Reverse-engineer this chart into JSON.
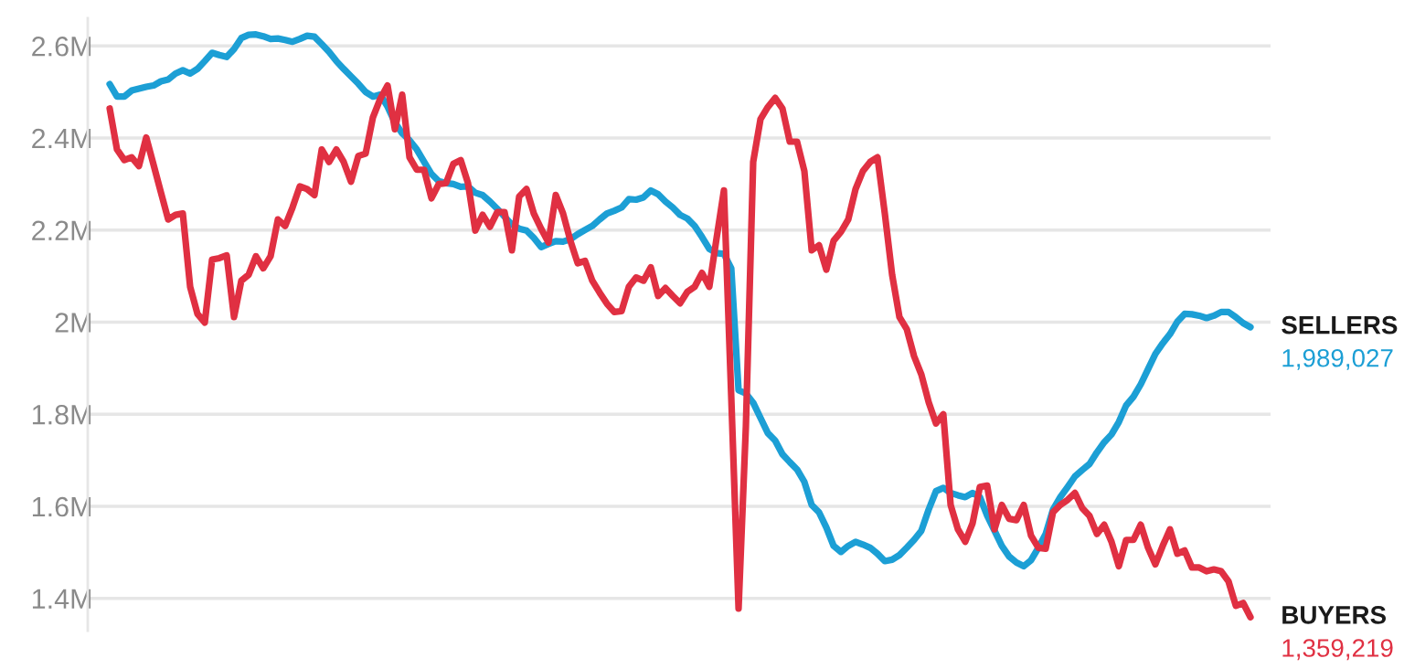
{
  "chart_data": {
    "type": "line",
    "categories": [
      null,
      null,
      null,
      null,
      null,
      null,
      null,
      null,
      null,
      null,
      null,
      null,
      null,
      null,
      null,
      null,
      null,
      null,
      null,
      null,
      null,
      null,
      null,
      null,
      null,
      null,
      null,
      null,
      null,
      null,
      null,
      null,
      null,
      null,
      null,
      null,
      null,
      null,
      null,
      null,
      null,
      null,
      null,
      null,
      null,
      null,
      null,
      null,
      null,
      null,
      null,
      null,
      null,
      null,
      null,
      null,
      null,
      null,
      null,
      null,
      null,
      null,
      null,
      null,
      null,
      null,
      null,
      null,
      null,
      null,
      null,
      null,
      null,
      null,
      null,
      null,
      null,
      null,
      null,
      null,
      null,
      null,
      null,
      null,
      null,
      null,
      null,
      null,
      null,
      null,
      null,
      null,
      null,
      null,
      null,
      null,
      null,
      null,
      null,
      null,
      null,
      null,
      null,
      null,
      null,
      null,
      null,
      null,
      null,
      null,
      null,
      null,
      null,
      null,
      null,
      null,
      null,
      null,
      null,
      null,
      null,
      null,
      null,
      null,
      null,
      null,
      null,
      null,
      null,
      null,
      null,
      null,
      null,
      null,
      null,
      null,
      null,
      null,
      null,
      null,
      null,
      null,
      null,
      null,
      null,
      null,
      null,
      null,
      null,
      null,
      null,
      null,
      null,
      null,
      null,
      null,
      null
    ],
    "series": [
      {
        "name": "SELLERS",
        "color": "#1c9fd5",
        "values": [
          2517000,
          2490000,
          2490000,
          2503000,
          2507000,
          2511000,
          2514000,
          2523000,
          2527000,
          2540000,
          2547000,
          2540000,
          2550000,
          2567000,
          2585000,
          2580000,
          2576000,
          2593000,
          2617000,
          2624000,
          2625000,
          2621000,
          2615000,
          2616000,
          2613000,
          2609000,
          2615000,
          2622000,
          2620000,
          2604000,
          2587000,
          2567000,
          2550000,
          2534000,
          2518000,
          2500000,
          2490000,
          2494000,
          2468000,
          2434000,
          2410000,
          2395000,
          2375000,
          2348000,
          2322000,
          2306000,
          2302000,
          2300000,
          2294000,
          2295000,
          2281000,
          2276000,
          2262000,
          2246000,
          2229000,
          2212000,
          2203000,
          2199000,
          2183000,
          2163000,
          2170000,
          2176000,
          2175000,
          2180000,
          2191000,
          2200000,
          2209000,
          2223000,
          2236000,
          2242000,
          2249000,
          2267000,
          2266000,
          2271000,
          2286000,
          2278000,
          2262000,
          2249000,
          2233000,
          2225000,
          2209000,
          2185000,
          2159000,
          2150000,
          2148000,
          2117000,
          1852000,
          1845000,
          1825000,
          1792000,
          1759000,
          1743000,
          1713000,
          1696000,
          1680000,
          1653000,
          1603000,
          1587000,
          1554000,
          1514000,
          1501000,
          1514000,
          1523000,
          1517000,
          1510000,
          1497000,
          1481000,
          1484000,
          1494000,
          1510000,
          1527000,
          1547000,
          1593000,
          1633000,
          1640000,
          1629000,
          1624000,
          1620000,
          1629000,
          1620000,
          1580000,
          1547000,
          1514000,
          1491000,
          1478000,
          1470000,
          1483000,
          1510000,
          1540000,
          1593000,
          1620000,
          1642000,
          1665000,
          1679000,
          1692000,
          1717000,
          1739000,
          1756000,
          1783000,
          1819000,
          1838000,
          1865000,
          1898000,
          1931000,
          1954000,
          1974000,
          2001000,
          2018000,
          2017000,
          2014000,
          2009000,
          2014000,
          2022000,
          2022000,
          2011000,
          1998000,
          1989027
        ],
        "value_labels": [
          null,
          null,
          null,
          null,
          null,
          null,
          null,
          null,
          null,
          null,
          null,
          null,
          null,
          null,
          null,
          null,
          null,
          null,
          null,
          null,
          null,
          null,
          null,
          null,
          null,
          null,
          null,
          null,
          null,
          null,
          null,
          null,
          null,
          null,
          null,
          null,
          null,
          null,
          null,
          null,
          null,
          null,
          null,
          null,
          null,
          null,
          null,
          null,
          null,
          null,
          null,
          null,
          null,
          null,
          null,
          null,
          null,
          null,
          null,
          null,
          null,
          null,
          null,
          null,
          null,
          null,
          null,
          null,
          null,
          null,
          null,
          null,
          null,
          null,
          null,
          null,
          null,
          null,
          null,
          null,
          null,
          null,
          null,
          null,
          null,
          null,
          null,
          null,
          null,
          null,
          null,
          null,
          null,
          null,
          null,
          null,
          null,
          null,
          null,
          null,
          null,
          null,
          null,
          null,
          null,
          null,
          null,
          null,
          null,
          null,
          null,
          null,
          null,
          null,
          null,
          null,
          null,
          null,
          null,
          null,
          null,
          null,
          null,
          null,
          null,
          null,
          null,
          null,
          null,
          null,
          null,
          null,
          null,
          null,
          null,
          null,
          null,
          null,
          null,
          null,
          null,
          null,
          null,
          null,
          null,
          null,
          null,
          null,
          null,
          null,
          null,
          null,
          null,
          null,
          null,
          null,
          "1,989,027"
        ]
      },
      {
        "name": "BUYERS",
        "color": "#e03042",
        "values": [
          2464000,
          2375000,
          2352000,
          2358000,
          2339000,
          2401000,
          2342000,
          2282000,
          2223000,
          2233000,
          2236000,
          2077000,
          2018000,
          1999000,
          2136000,
          2139000,
          2145000,
          2011000,
          2090000,
          2103000,
          2143000,
          2117000,
          2143000,
          2223000,
          2209000,
          2249000,
          2295000,
          2289000,
          2276000,
          2375000,
          2348000,
          2375000,
          2348000,
          2305000,
          2361000,
          2366000,
          2445000,
          2485000,
          2514000,
          2419000,
          2494000,
          2358000,
          2331000,
          2331000,
          2269000,
          2300000,
          2302000,
          2344000,
          2352000,
          2302000,
          2199000,
          2233000,
          2207000,
          2239000,
          2239000,
          2156000,
          2273000,
          2289000,
          2236000,
          2203000,
          2173000,
          2276000,
          2236000,
          2177000,
          2128000,
          2133000,
          2090000,
          2064000,
          2040000,
          2022000,
          2024000,
          2077000,
          2097000,
          2090000,
          2119000,
          2057000,
          2074000,
          2057000,
          2041000,
          2066000,
          2077000,
          2107000,
          2077000,
          2183000,
          2286000,
          1838000,
          1378000,
          1773000,
          2348000,
          2441000,
          2467000,
          2487000,
          2464000,
          2392000,
          2392000,
          2328000,
          2156000,
          2167000,
          2114000,
          2177000,
          2196000,
          2223000,
          2289000,
          2328000,
          2348000,
          2358000,
          2236000,
          2103000,
          2011000,
          1985000,
          1926000,
          1886000,
          1826000,
          1780000,
          1800000,
          1603000,
          1550000,
          1523000,
          1563000,
          1642000,
          1645000,
          1550000,
          1603000,
          1573000,
          1570000,
          1603000,
          1536000,
          1510000,
          1508000,
          1587000,
          1603000,
          1614000,
          1629000,
          1596000,
          1579000,
          1540000,
          1560000,
          1523000,
          1470000,
          1527000,
          1527000,
          1560000,
          1510000,
          1474000,
          1514000,
          1550000,
          1497000,
          1504000,
          1467000,
          1467000,
          1459000,
          1463000,
          1459000,
          1437000,
          1384000,
          1390000,
          1359219
        ],
        "value_labels": [
          null,
          null,
          null,
          null,
          null,
          null,
          null,
          null,
          null,
          null,
          null,
          null,
          null,
          null,
          null,
          null,
          null,
          null,
          null,
          null,
          null,
          null,
          null,
          null,
          null,
          null,
          null,
          null,
          null,
          null,
          null,
          null,
          null,
          null,
          null,
          null,
          null,
          null,
          null,
          null,
          null,
          null,
          null,
          null,
          null,
          null,
          null,
          null,
          null,
          null,
          null,
          null,
          null,
          null,
          null,
          null,
          null,
          null,
          null,
          null,
          null,
          null,
          null,
          null,
          null,
          null,
          null,
          null,
          null,
          null,
          null,
          null,
          null,
          null,
          null,
          null,
          null,
          null,
          null,
          null,
          null,
          null,
          null,
          null,
          null,
          null,
          null,
          null,
          null,
          null,
          null,
          null,
          null,
          null,
          null,
          null,
          null,
          null,
          null,
          null,
          null,
          null,
          null,
          null,
          null,
          null,
          null,
          null,
          null,
          null,
          null,
          null,
          null,
          null,
          null,
          null,
          null,
          null,
          null,
          null,
          null,
          null,
          null,
          null,
          null,
          null,
          null,
          null,
          null,
          null,
          null,
          null,
          null,
          null,
          null,
          null,
          null,
          null,
          null,
          null,
          null,
          null,
          null,
          null,
          null,
          null,
          null,
          null,
          null,
          null,
          null,
          null,
          null,
          null,
          null,
          null,
          "1,359,219"
        ]
      }
    ],
    "ylim": [
      1330000,
      2660000
    ],
    "yticks": [
      {
        "value": 1400000,
        "label": "1.4M"
      },
      {
        "value": 1600000,
        "label": "1.6M"
      },
      {
        "value": 1800000,
        "label": "1.8M"
      },
      {
        "value": 2000000,
        "label": "2M"
      },
      {
        "value": 2200000,
        "label": "2.2M"
      },
      {
        "value": 2400000,
        "label": "2.4M"
      },
      {
        "value": 2600000,
        "label": "2.6M"
      }
    ],
    "grid": "y",
    "tick_labels": "y",
    "marker": "none",
    "line_style": "solid"
  }
}
